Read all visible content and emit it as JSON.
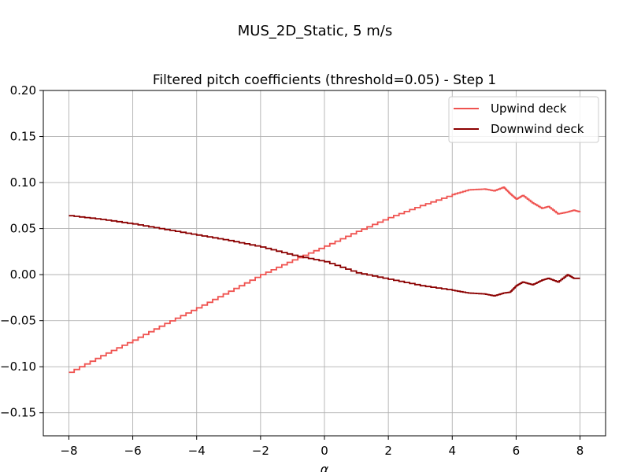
{
  "figure": {
    "suptitle": "MUS_2D_Static, 5 m/s"
  },
  "chart_data": {
    "type": "line",
    "title": "Filtered pitch coefficients (threshold=0.05) - Step 1",
    "xlabel": "α",
    "ylabel": "",
    "xlim": [
      -8.8,
      8.8
    ],
    "ylim": [
      -0.175,
      0.2
    ],
    "xticks": [
      -8,
      -6,
      -4,
      -2,
      0,
      2,
      4,
      6,
      8
    ],
    "xtick_labels": [
      "−8",
      "−6",
      "−4",
      "−2",
      "0",
      "2",
      "4",
      "6",
      "8"
    ],
    "yticks": [
      -0.15,
      -0.1,
      -0.05,
      0.0,
      0.05,
      0.1,
      0.15,
      0.2
    ],
    "ytick_labels": [
      "−0.15",
      "−0.10",
      "−0.05",
      "0.00",
      "0.05",
      "0.10",
      "0.15",
      "0.20"
    ],
    "grid": true,
    "legend_position": "top-right",
    "series": [
      {
        "name": "Upwind deck",
        "color": "#ef5350",
        "x": [
          -8,
          -7,
          -6,
          -5,
          -4,
          -3,
          -2,
          -1,
          0,
          1,
          2,
          3,
          4,
          4.5,
          5,
          5.3,
          5.6,
          5.8,
          6,
          6.2,
          6.5,
          6.8,
          7,
          7.3,
          7.6,
          7.8,
          8
        ],
        "y": [
          -0.106,
          -0.088,
          -0.071,
          -0.053,
          -0.036,
          -0.018,
          0.0,
          0.016,
          0.031,
          0.047,
          0.062,
          0.075,
          0.087,
          0.092,
          0.093,
          0.091,
          0.095,
          0.088,
          0.082,
          0.086,
          0.078,
          0.072,
          0.074,
          0.066,
          0.068,
          0.07,
          0.068
        ]
      },
      {
        "name": "Downwind deck",
        "color": "#8b0000",
        "x": [
          -8,
          -7,
          -6,
          -5,
          -4,
          -3,
          -2,
          -1,
          0,
          1,
          2,
          3,
          4,
          4.5,
          5,
          5.3,
          5.6,
          5.8,
          6,
          6.2,
          6.5,
          6.8,
          7,
          7.3,
          7.6,
          7.8,
          8
        ],
        "y": [
          0.064,
          0.06,
          0.055,
          0.049,
          0.043,
          0.037,
          0.03,
          0.021,
          0.014,
          0.002,
          -0.005,
          -0.012,
          -0.017,
          -0.02,
          -0.021,
          -0.023,
          -0.02,
          -0.019,
          -0.012,
          -0.008,
          -0.011,
          -0.006,
          -0.004,
          -0.008,
          0.0,
          -0.004,
          -0.004
        ]
      }
    ]
  }
}
